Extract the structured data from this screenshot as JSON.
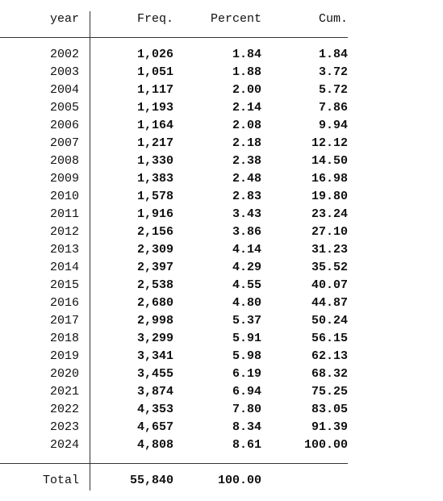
{
  "table": {
    "header": [
      "year",
      "Freq.",
      "Percent",
      "Cum."
    ],
    "rows": [
      [
        "2002",
        "1,026",
        "1.84",
        "1.84"
      ],
      [
        "2003",
        "1,051",
        "1.88",
        "3.72"
      ],
      [
        "2004",
        "1,117",
        "2.00",
        "5.72"
      ],
      [
        "2005",
        "1,193",
        "2.14",
        "7.86"
      ],
      [
        "2006",
        "1,164",
        "2.08",
        "9.94"
      ],
      [
        "2007",
        "1,217",
        "2.18",
        "12.12"
      ],
      [
        "2008",
        "1,330",
        "2.38",
        "14.50"
      ],
      [
        "2009",
        "1,383",
        "2.48",
        "16.98"
      ],
      [
        "2010",
        "1,578",
        "2.83",
        "19.80"
      ],
      [
        "2011",
        "1,916",
        "3.43",
        "23.24"
      ],
      [
        "2012",
        "2,156",
        "3.86",
        "27.10"
      ],
      [
        "2013",
        "2,309",
        "4.14",
        "31.23"
      ],
      [
        "2014",
        "2,397",
        "4.29",
        "35.52"
      ],
      [
        "2015",
        "2,538",
        "4.55",
        "40.07"
      ],
      [
        "2016",
        "2,680",
        "4.80",
        "44.87"
      ],
      [
        "2017",
        "2,998",
        "5.37",
        "50.24"
      ],
      [
        "2018",
        "3,299",
        "5.91",
        "56.15"
      ],
      [
        "2019",
        "3,341",
        "5.98",
        "62.13"
      ],
      [
        "2020",
        "3,455",
        "6.19",
        "68.32"
      ],
      [
        "2021",
        "3,874",
        "6.94",
        "75.25"
      ],
      [
        "2022",
        "4,353",
        "7.80",
        "83.05"
      ],
      [
        "2023",
        "4,657",
        "8.34",
        "91.39"
      ],
      [
        "2024",
        "4,808",
        "8.61",
        "100.00"
      ]
    ],
    "total": [
      "Total",
      "55,840",
      "100.00"
    ]
  }
}
